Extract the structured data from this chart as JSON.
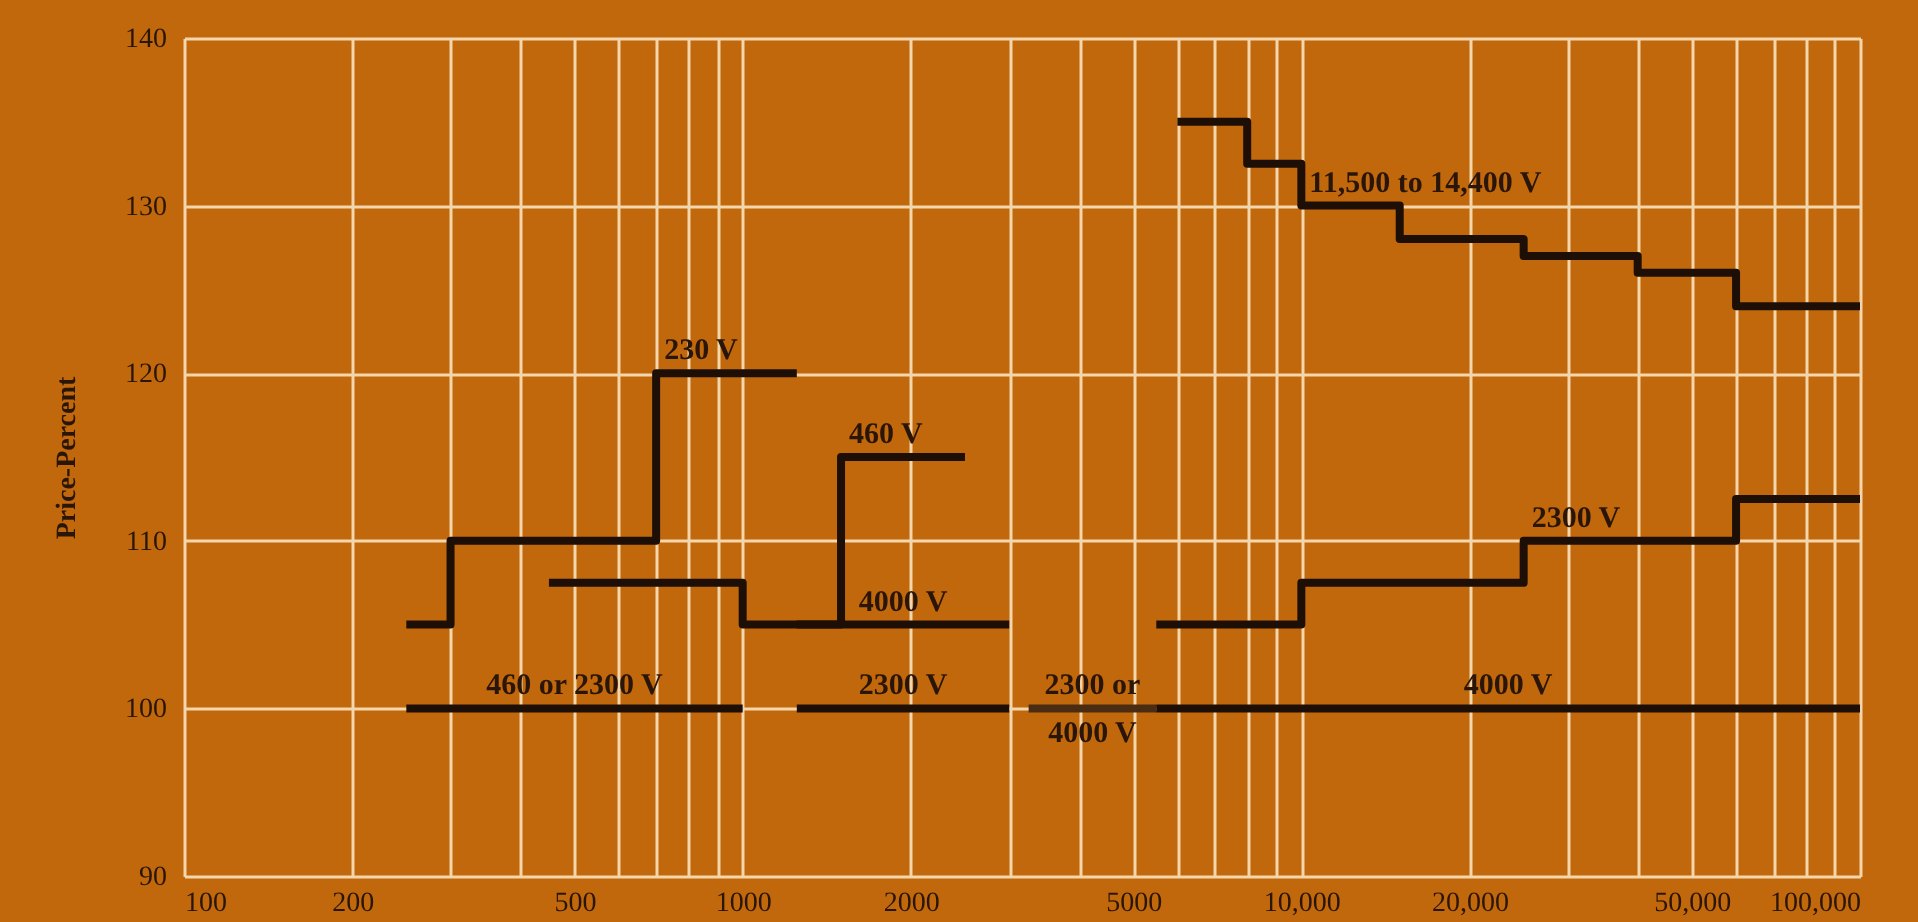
{
  "chart_data": {
    "type": "step",
    "ylabel": "Price-Percent",
    "log": "x",
    "grid": true,
    "xlim": [
      100,
      100000
    ],
    "xticks": [
      100,
      200,
      {
        "value": 300,
        "label": null
      },
      {
        "value": 400,
        "label": null
      },
      500,
      {
        "value": 600,
        "label": null
      },
      {
        "value": 700,
        "label": null
      },
      {
        "value": 800,
        "label": null
      },
      {
        "value": 900,
        "label": null
      },
      1000,
      2000,
      {
        "value": 3000,
        "label": null
      },
      {
        "value": 4000,
        "label": null
      },
      5000,
      {
        "value": 6000,
        "label": null
      },
      {
        "value": 7000,
        "label": null
      },
      {
        "value": 8000,
        "label": null
      },
      {
        "value": 9000,
        "label": null
      },
      {
        "value": 10000,
        "label": "10,000"
      },
      {
        "value": 20000,
        "label": "20,000"
      },
      {
        "value": 30000,
        "label": null
      },
      {
        "value": 40000,
        "label": null
      },
      {
        "value": 50000,
        "label": "50,000"
      },
      {
        "value": 60000,
        "label": null
      },
      {
        "value": 70000,
        "label": null
      },
      {
        "value": 80000,
        "label": null
      },
      {
        "value": 90000,
        "label": null
      },
      {
        "value": 100000,
        "label": "100,000"
      }
    ],
    "ylim": [
      90,
      140
    ],
    "yticks": [
      90,
      100,
      110,
      120,
      130,
      140
    ],
    "series": [
      {
        "name": "230 V",
        "color": "#1e0f06",
        "x": [
          250,
          300,
          700,
          1250
        ],
        "values": [
          105,
          110,
          120,
          120
        ]
      },
      {
        "name": "460 V",
        "color": "#1e0f06",
        "x": [
          450,
          1000,
          1500,
          2500
        ],
        "values": [
          107.5,
          105,
          115,
          115
        ]
      },
      {
        "name": "4000 V",
        "color": "#1e0f06",
        "x": [
          1250,
          3000
        ],
        "values": [
          105,
          105
        ]
      },
      {
        "name": "460 or 2300 V",
        "color": "#1e0f06",
        "x": [
          250,
          1000
        ],
        "values": [
          100,
          100
        ]
      },
      {
        "name": "2300 V",
        "color": "#1e0f06",
        "x": [
          1250,
          3000
        ],
        "values": [
          100,
          100
        ]
      },
      {
        "name": "2300 or 4000 V",
        "color": "#4a2c12",
        "x": [
          3250,
          5500
        ],
        "values": [
          100,
          100
        ]
      },
      {
        "name": "4000 V",
        "color": "#1e0f06",
        "x": [
          5500,
          100000
        ],
        "values": [
          100,
          100
        ]
      },
      {
        "name": "2300 V",
        "color": "#1e0f06",
        "x": [
          5500,
          10000,
          25000,
          60000,
          100000
        ],
        "values": [
          105,
          107.5,
          110,
          112.5,
          112.5
        ]
      },
      {
        "name": "11,500 to 14,400 V",
        "color": "#1e0f06",
        "x": [
          6000,
          8000,
          10000,
          15000,
          25000,
          40000,
          60000,
          100000
        ],
        "values": [
          135,
          132.5,
          130,
          128,
          127,
          126,
          124,
          124
        ]
      }
    ]
  }
}
